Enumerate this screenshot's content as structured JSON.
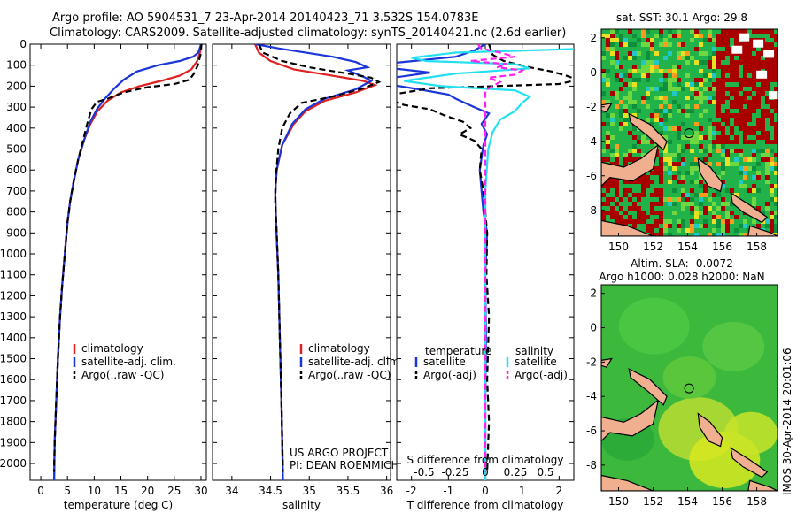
{
  "title_line1": "Argo profile: AO 5904531_7 23-Apr-2014 20140423_71 3.532S 154.0783E",
  "title_line2": "Climatology: CARS2009. Satellite-adjusted climatology: synTS_20140421.nc (2.6d earlier)",
  "side_label": "IMOS 30-Apr-2014 20:01:06",
  "colors": {
    "climatology": "#e02020",
    "satellite": "#1a35d8",
    "argo": "#000000",
    "sal_sat": "#22e0f0",
    "sal_argo": "#ff22ee"
  },
  "chart_data": [
    {
      "type": "line",
      "id": "temperature",
      "xlabel": "temperature (deg C)",
      "xlim": [
        -2,
        31
      ],
      "ylim": [
        2080,
        0
      ],
      "xticks": [
        0,
        5,
        10,
        15,
        20,
        25,
        30
      ],
      "yticks": [
        0,
        100,
        200,
        300,
        400,
        500,
        600,
        700,
        800,
        900,
        1000,
        1100,
        1200,
        1300,
        1400,
        1500,
        1600,
        1700,
        1800,
        1900,
        2000
      ],
      "legend": [
        "climatology",
        "satellite-adj. clim.",
        "Argo(..raw -QC)"
      ],
      "series": [
        {
          "name": "climatology",
          "style": "solid",
          "color": "#e02020",
          "points": [
            [
              30,
              0
            ],
            [
              29.8,
              40
            ],
            [
              29.3,
              80
            ],
            [
              28.2,
              120
            ],
            [
              26,
              150
            ],
            [
              22.5,
              175
            ],
            [
              18.5,
              200
            ],
            [
              15,
              230
            ],
            [
              12.5,
              270
            ],
            [
              10.6,
              320
            ],
            [
              9.3,
              380
            ],
            [
              8.2,
              450
            ],
            [
              7,
              550
            ],
            [
              6.2,
              650
            ],
            [
              5.5,
              750
            ],
            [
              5,
              850
            ],
            [
              4.5,
              1000
            ],
            [
              4,
              1150
            ],
            [
              3.6,
              1300
            ],
            [
              3.2,
              1500
            ],
            [
              2.9,
              1700
            ],
            [
              2.6,
              1900
            ],
            [
              2.5,
              2080
            ]
          ]
        },
        {
          "name": "satellite-adj. clim.",
          "style": "solid",
          "color": "#1a35d8",
          "points": [
            [
              30,
              0
            ],
            [
              29.5,
              40
            ],
            [
              28.5,
              60
            ],
            [
              26,
              80
            ],
            [
              22,
              100
            ],
            [
              18,
              130
            ],
            [
              15.5,
              170
            ],
            [
              13.8,
              210
            ],
            [
              12,
              260
            ],
            [
              10.5,
              310
            ],
            [
              9.3,
              370
            ],
            [
              8.2,
              450
            ],
            [
              7,
              550
            ],
            [
              6.2,
              650
            ],
            [
              5.5,
              750
            ],
            [
              5,
              850
            ],
            [
              4.5,
              1000
            ],
            [
              4,
              1150
            ],
            [
              3.6,
              1300
            ],
            [
              3.2,
              1500
            ],
            [
              2.9,
              1700
            ],
            [
              2.6,
              1900
            ],
            [
              2.5,
              2080
            ]
          ]
        },
        {
          "name": "Argo(..raw -QC)",
          "style": "dashed",
          "color": "#000000",
          "points": [
            [
              30.1,
              0
            ],
            [
              29.9,
              50
            ],
            [
              29.4,
              100
            ],
            [
              28.7,
              140
            ],
            [
              27.8,
              170
            ],
            [
              25,
              190
            ],
            [
              20,
              205
            ],
            [
              15.5,
              230
            ],
            [
              12.5,
              260
            ],
            [
              10.5,
              275
            ],
            [
              9.5,
              310
            ],
            [
              8.8,
              370
            ],
            [
              8,
              450
            ],
            [
              7,
              550
            ],
            [
              6.2,
              650
            ],
            [
              5.5,
              750
            ],
            [
              5,
              850
            ],
            [
              4.5,
              1000
            ],
            [
              4,
              1150
            ],
            [
              3.6,
              1300
            ],
            [
              3.2,
              1500
            ],
            [
              2.9,
              1700
            ],
            [
              2.6,
              1900
            ],
            [
              2.5,
              2040
            ]
          ]
        }
      ]
    },
    {
      "type": "line",
      "id": "salinity",
      "xlabel": "salinity",
      "xlim": [
        33.75,
        36.05
      ],
      "ylim": [
        2080,
        0
      ],
      "xticks": [
        34,
        34.5,
        35,
        35.5,
        36
      ],
      "legend": [
        "climatology",
        "satellite-adj. clim.",
        "Argo(..raw -QC)"
      ],
      "note": [
        "US ARGO PROJECT",
        "PI: DEAN ROEMMICH"
      ],
      "series": [
        {
          "name": "climatology",
          "style": "solid",
          "color": "#e02020",
          "points": [
            [
              34.3,
              0
            ],
            [
              34.35,
              40
            ],
            [
              34.5,
              80
            ],
            [
              34.8,
              120
            ],
            [
              35.3,
              150
            ],
            [
              35.7,
              175
            ],
            [
              35.85,
              195
            ],
            [
              35.6,
              230
            ],
            [
              35.2,
              270
            ],
            [
              34.95,
              320
            ],
            [
              34.8,
              380
            ],
            [
              34.65,
              480
            ],
            [
              34.58,
              600
            ],
            [
              34.56,
              700
            ],
            [
              34.57,
              850
            ],
            [
              34.6,
              1100
            ],
            [
              34.62,
              1400
            ],
            [
              34.64,
              1700
            ],
            [
              34.66,
              2080
            ]
          ]
        },
        {
          "name": "satellite-adj. clim.",
          "style": "solid",
          "color": "#1a35d8",
          "points": [
            [
              34.3,
              0
            ],
            [
              34.6,
              20
            ],
            [
              35.3,
              60
            ],
            [
              35.6,
              85
            ],
            [
              35.75,
              110
            ],
            [
              35.5,
              125
            ],
            [
              35.7,
              155
            ],
            [
              35.8,
              175
            ],
            [
              35.6,
              215
            ],
            [
              35.2,
              260
            ],
            [
              34.95,
              310
            ],
            [
              34.78,
              380
            ],
            [
              34.65,
              480
            ],
            [
              34.58,
              600
            ],
            [
              34.56,
              700
            ],
            [
              34.57,
              850
            ],
            [
              34.6,
              1100
            ],
            [
              34.62,
              1400
            ],
            [
              34.64,
              1700
            ],
            [
              34.66,
              2080
            ]
          ]
        },
        {
          "name": "Argo(..raw -QC)",
          "style": "dashed",
          "color": "#000000",
          "points": [
            [
              34.35,
              0
            ],
            [
              34.4,
              40
            ],
            [
              34.65,
              80
            ],
            [
              35.0,
              110
            ],
            [
              35.5,
              140
            ],
            [
              35.8,
              160
            ],
            [
              35.9,
              180
            ],
            [
              35.7,
              210
            ],
            [
              35.3,
              250
            ],
            [
              34.9,
              280
            ],
            [
              34.75,
              330
            ],
            [
              34.65,
              400
            ],
            [
              34.6,
              500
            ],
            [
              34.57,
              620
            ],
            [
              34.56,
              750
            ],
            [
              34.58,
              900
            ],
            [
              34.6,
              1100
            ],
            [
              34.62,
              1400
            ],
            [
              34.64,
              1700
            ],
            [
              34.66,
              2040
            ]
          ]
        }
      ]
    },
    {
      "type": "line",
      "id": "difference",
      "xlabel_bottom": "T difference from climatology",
      "xlabel_top": "S difference from climatology",
      "xlim_T": [
        -2.4,
        2.4
      ],
      "xticks_T": [
        -2,
        -1,
        0,
        1,
        2
      ],
      "xticks_S": [
        -0.5,
        -0.25,
        0,
        0.25,
        0.5
      ],
      "xticklabels_S": [
        "-0.5",
        "-0.25",
        "0",
        "0.25",
        "0.5"
      ],
      "legend_headers": [
        "temperature",
        "salinity"
      ],
      "legend": [
        "satellite",
        "Argo(-adj)",
        "satellite",
        "Argo(-adj)"
      ],
      "series": [
        {
          "name": "satellite",
          "group": "temperature",
          "style": "solid",
          "color": "#1a35d8",
          "points": [
            [
              0,
              0
            ],
            [
              -0.3,
              30
            ],
            [
              -0.8,
              60
            ],
            [
              -2.5,
              90
            ],
            [
              -2.5,
              115
            ],
            [
              -1.5,
              135
            ],
            [
              -2.5,
              160
            ],
            [
              -2.5,
              195
            ],
            [
              -1.8,
              215
            ],
            [
              -1.0,
              240
            ],
            [
              -0.8,
              260
            ],
            [
              -0.3,
              300
            ],
            [
              0.1,
              330
            ],
            [
              -0.1,
              380
            ],
            [
              0.05,
              430
            ],
            [
              -0.05,
              480
            ],
            [
              -0.15,
              600
            ],
            [
              -0.1,
              700
            ],
            [
              -0.05,
              800
            ],
            [
              0.05,
              900
            ],
            [
              0,
              1100
            ],
            [
              0.02,
              1400
            ],
            [
              0,
              1700
            ],
            [
              0,
              2080
            ]
          ]
        },
        {
          "name": "Argo(-adj)",
          "group": "temperature",
          "style": "dashed",
          "color": "#000000",
          "points": [
            [
              0.1,
              0
            ],
            [
              0.2,
              50
            ],
            [
              0.5,
              80
            ],
            [
              1.2,
              110
            ],
            [
              1.8,
              130
            ],
            [
              2.2,
              150
            ],
            [
              2.5,
              170
            ],
            [
              2.0,
              190
            ],
            [
              -1.5,
              210
            ],
            [
              -2.5,
              240
            ],
            [
              -2.5,
              270
            ],
            [
              -2.2,
              290
            ],
            [
              -1.5,
              310
            ],
            [
              -1.1,
              340
            ],
            [
              -0.6,
              370
            ],
            [
              -0.4,
              400
            ],
            [
              -0.7,
              430
            ],
            [
              -0.3,
              460
            ],
            [
              -0.1,
              500
            ],
            [
              -0.15,
              600
            ],
            [
              -0.05,
              700
            ],
            [
              0,
              800
            ],
            [
              0.05,
              900
            ],
            [
              0.03,
              1100
            ],
            [
              0.1,
              1300
            ],
            [
              0.05,
              1600
            ],
            [
              0.1,
              1800
            ],
            [
              0.05,
              2040
            ]
          ]
        },
        {
          "name": "satellite",
          "group": "salinity",
          "style": "solid",
          "color": "#22e0f0",
          "points": [
            [
              0.75,
              20
            ],
            [
              -0.2,
              40
            ],
            [
              -0.5,
              65
            ],
            [
              -0.4,
              80
            ],
            [
              0.2,
              95
            ],
            [
              0.3,
              115
            ],
            [
              -0.2,
              140
            ],
            [
              -0.55,
              175
            ],
            [
              -0.3,
              200
            ],
            [
              0.2,
              220
            ],
            [
              0.3,
              250
            ],
            [
              0.25,
              280
            ],
            [
              0.2,
              320
            ],
            [
              0.1,
              360
            ],
            [
              0.05,
              420
            ],
            [
              0.02,
              500
            ],
            [
              0,
              700
            ],
            [
              0,
              1000
            ],
            [
              0,
              1400
            ],
            [
              0,
              1800
            ],
            [
              0,
              2080
            ]
          ]
        },
        {
          "name": "Argo(-adj)",
          "group": "salinity",
          "style": "dashed",
          "color": "#ff22ee",
          "points": [
            [
              -0.05,
              0
            ],
            [
              -0.03,
              20
            ],
            [
              0.1,
              40
            ],
            [
              0.2,
              60
            ],
            [
              -0.1,
              80
            ],
            [
              0.15,
              95
            ],
            [
              0.08,
              110
            ],
            [
              0.25,
              125
            ],
            [
              0.2,
              145
            ],
            [
              0.02,
              160
            ],
            [
              0.1,
              180
            ],
            [
              0.05,
              200
            ],
            [
              0,
              220
            ],
            [
              0,
              300
            ],
            [
              0,
              500
            ],
            [
              0,
              1000
            ],
            [
              0,
              2040
            ]
          ]
        }
      ]
    },
    {
      "type": "heatmap",
      "id": "sst_map",
      "title": "sat. SST: 30.1  Argo: 29.8",
      "xlim": [
        149,
        159.2
      ],
      "ylim": [
        -9.5,
        2.5
      ],
      "xticks": [
        150,
        152,
        154,
        156,
        158
      ],
      "yticks": [
        2,
        0,
        -2,
        -4,
        -6,
        -8
      ],
      "argo_position": {
        "lon": 154.08,
        "lat": -3.53
      }
    },
    {
      "type": "heatmap",
      "id": "sla_map",
      "title_line1": "Altim. SLA: -0.0072",
      "title_line2": "Argo h1000: 0.028 h2000: NaN",
      "xlim": [
        149,
        159.2
      ],
      "ylim": [
        -9.5,
        2.5
      ],
      "xticks": [
        150,
        152,
        154,
        156,
        158
      ],
      "yticks": [
        2,
        0,
        -2,
        -4,
        -6,
        -8
      ],
      "argo_position": {
        "lon": 154.08,
        "lat": -3.53
      }
    }
  ]
}
